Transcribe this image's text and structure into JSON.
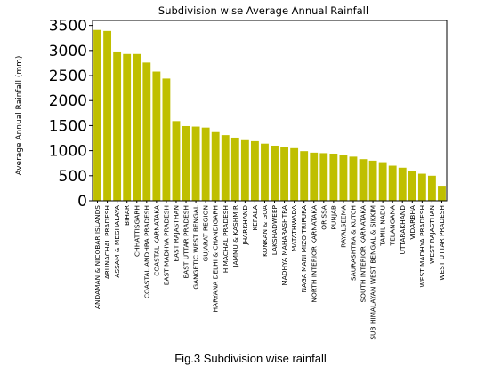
{
  "chart_data": {
    "type": "bar",
    "title": "Subdivision wise Average Annual Rainfall",
    "xlabel": "",
    "ylabel": "Average Annual Rainfall (mm)",
    "ylim": [
      0,
      3600
    ],
    "yticks": [
      0,
      500,
      1000,
      1500,
      2000,
      2500,
      3000,
      3500
    ],
    "grid": false,
    "bar_color": "#bfbf00",
    "categories": [
      "ANDAMAN & NICOBAR ISLANDS",
      "ARUNACHAL PRADESH",
      "ASSAM & MEGHALAYA",
      "BIHAR",
      "CHHATTISGARH",
      "COASTAL ANDHRA PRADESH",
      "COASTAL KARNATAKA",
      "EAST MADHYA PRADESH",
      "EAST RAJASTHAN",
      "EAST UTTAR PRADESH",
      "GANGETIC WEST BENGAL",
      "GUJARAT REGION",
      "HARYANA DELHI & CHANDIGARH",
      "HIMACHAL PRADESH",
      "JAMMU & KASHMIR",
      "JHARKHAND",
      "KERALA",
      "KONKAN & GOA",
      "LAKSHADWEEP",
      "MADHYA MAHARASHTRA",
      "MATATHWADA",
      "NAGA MANI MIZO TRIPURA",
      "NORTH INTERIOR KARNATAKA",
      "ORISSA",
      "PUNJAB",
      "RAYALSEEMA",
      "SAURASHTRA & KUTCH",
      "SOUTH INTERIOR KARNATAKA",
      "SUB HIMALAYAN WEST BENGAL & SIKKIM",
      "TAMIL NADU",
      "TELANGANA",
      "UTTARAKHAND",
      "VIDARBHA",
      "WEST MADHYA PRADESH",
      "WEST RAJASTHAN",
      "WEST UTTAR PRADESH"
    ],
    "values": [
      3410,
      3390,
      2980,
      2930,
      2930,
      2760,
      2580,
      2440,
      1590,
      1490,
      1480,
      1460,
      1370,
      1310,
      1260,
      1210,
      1190,
      1140,
      1100,
      1070,
      1050,
      990,
      960,
      950,
      940,
      910,
      880,
      830,
      800,
      770,
      700,
      660,
      600,
      540,
      500,
      300
    ]
  },
  "figure": {
    "caption": "Fig.3 Subdivision wise rainfall"
  }
}
